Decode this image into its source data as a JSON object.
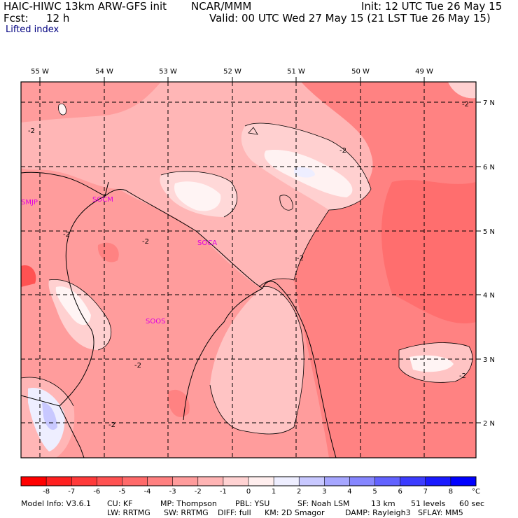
{
  "header": {
    "model": "HAIC-HIWC 13km ARW-GFS init",
    "org": "NCAR/MMM",
    "init": "Init: 12 UTC Tue 26 May 15",
    "fcst_label": "Fcst:",
    "fcst_value": "12 h",
    "valid": "Valid: 00 UTC Wed 27 May 15 (21 LST Tue 26 May 15)",
    "field": "Lifted index"
  },
  "map": {
    "lon_labels": [
      "55 W",
      "54 W",
      "53 W",
      "52 W",
      "51 W",
      "50 W",
      "49 W"
    ],
    "lat_labels": [
      "7 N",
      "6 N",
      "5 N",
      "4 N",
      "3 N",
      "2 N"
    ],
    "stations": [
      "SMJP",
      "SOCM",
      "SOCA",
      "SOOS"
    ],
    "contour_label": "-2"
  },
  "colorbar": {
    "ticks": [
      "-8",
      "-7",
      "-6",
      "-5",
      "-4",
      "-3",
      "-2",
      "-1",
      "0",
      "1",
      "2",
      "3",
      "4",
      "5",
      "6",
      "7",
      "8"
    ],
    "unit": "°C",
    "colors": [
      "#ff0000",
      "#ff2020",
      "#ff3a3a",
      "#ff5252",
      "#ff6a6a",
      "#ff8080",
      "#ff9c9c",
      "#ffb4b4",
      "#ffd2d2",
      "#ffeeee",
      "#eeeeff",
      "#c8c8ff",
      "#a6a6ff",
      "#8686ff",
      "#6262ff",
      "#3c3cff",
      "#1a1aff",
      "#0000ff"
    ]
  },
  "footer": {
    "line1": [
      "Model Info: V3.6.1",
      "CU: KF",
      "MP: Thompson",
      "PBL: YSU",
      "SF: Noah LSM",
      "13 km",
      "51 levels",
      "60 sec"
    ],
    "line2": [
      "LW: RRTMG",
      "SW: RRTMG",
      "DIFF: full",
      "KM: 2D Smagor",
      "DAMP: Rayleigh3",
      "SFLAY: MM5"
    ]
  }
}
